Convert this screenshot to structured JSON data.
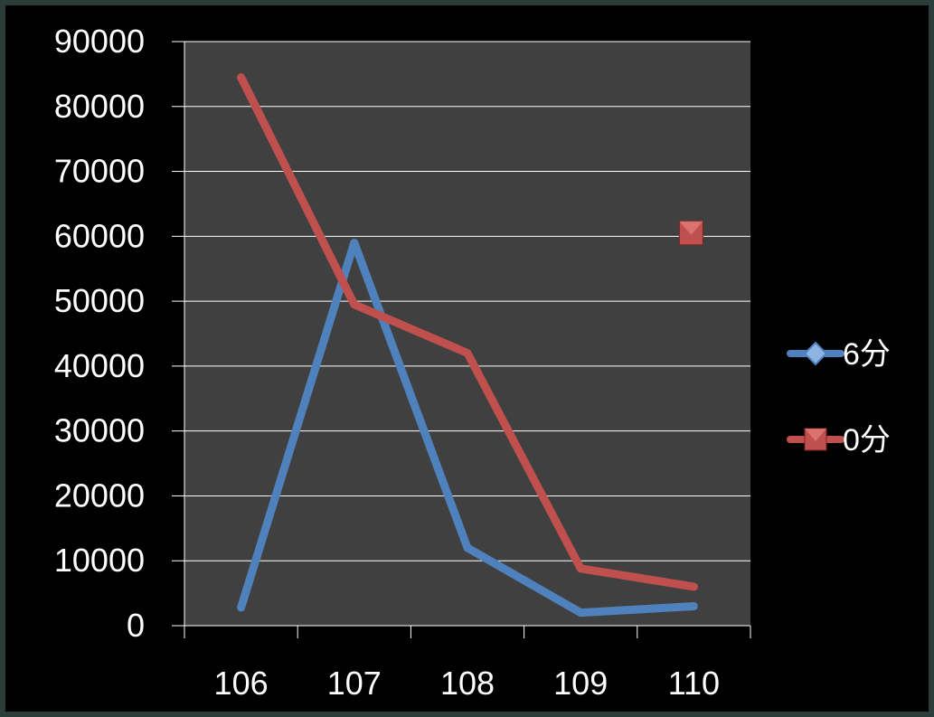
{
  "chart_data": {
    "type": "line",
    "categories": [
      "106",
      "107",
      "108",
      "109",
      "110"
    ],
    "ylim": [
      0,
      90000
    ],
    "yticks": [
      "0",
      "10000",
      "20000",
      "30000",
      "40000",
      "50000",
      "60000",
      "70000",
      "80000",
      "90000"
    ],
    "grid": true,
    "legend_position": "right",
    "series": [
      {
        "name": "6分",
        "color": "#4f81bd",
        "marker": "diamond",
        "values": [
          2800,
          59000,
          12000,
          2000,
          3000
        ]
      },
      {
        "name": "0分",
        "color": "#c0504d",
        "marker": "square",
        "values": [
          84500,
          49500,
          42000,
          8800,
          6000
        ]
      }
    ],
    "stray_marker": {
      "series": "0分",
      "x": "110",
      "y": 60500
    }
  },
  "colors": {
    "background": "#2a3d38",
    "frame": "#000000",
    "plot_area": "#404040",
    "gridline": "#ffffff"
  }
}
